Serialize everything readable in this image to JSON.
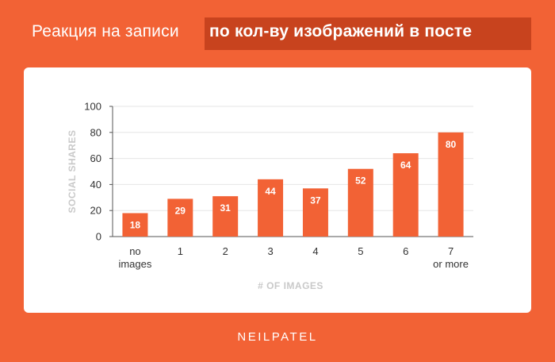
{
  "header": {
    "title_plain": "Реакция на записи",
    "title_bold": "по кол-ву изображений в посте"
  },
  "brand": {
    "logo_text": "NEILPATEL"
  },
  "colors": {
    "background": "#F26235",
    "highlight": "#C8431E",
    "bar": "#F26235",
    "grid": "#E6E6E6",
    "axis": "#555555",
    "axis_label": "#C9C9C9"
  },
  "chart_data": {
    "type": "bar",
    "categories": [
      [
        "no",
        "images"
      ],
      [
        "1"
      ],
      [
        "2"
      ],
      [
        "3"
      ],
      [
        "4"
      ],
      [
        "5"
      ],
      [
        "6"
      ],
      [
        "7",
        "or more"
      ]
    ],
    "values": [
      18,
      29,
      31,
      44,
      37,
      52,
      64,
      80
    ],
    "data_labels": [
      "18",
      "29",
      "31",
      "44",
      "37",
      "52",
      "64",
      "80"
    ],
    "xlabel": "# OF IMAGES",
    "ylabel": "SOCIAL SHARES",
    "ylim": [
      0,
      100
    ],
    "yticks": [
      0,
      20,
      40,
      60,
      80,
      100
    ],
    "grid": true,
    "legend": "none"
  }
}
